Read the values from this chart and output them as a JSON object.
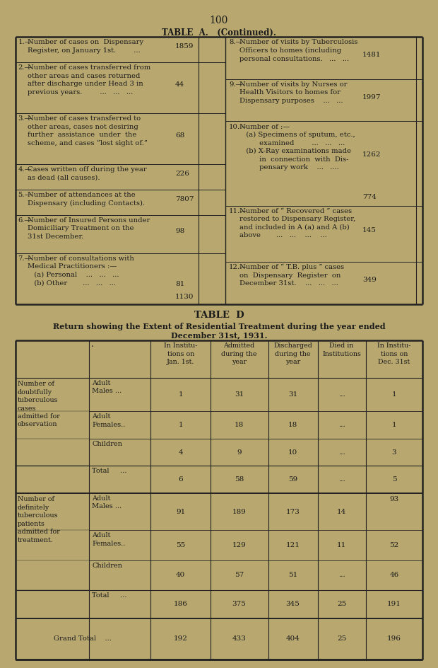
{
  "bg_color": "#b8a870",
  "cell_bg": "#c8b882",
  "text_color": "#1a1a1a",
  "page_number": "100",
  "table_a_title": "TABLE  A.   (Continued).",
  "left_items": [
    {
      "num": "1.",
      "text": "Number of cases on  Dispensary\nRegister, on January 1st.        ...",
      "value": "1859",
      "lines": 2
    },
    {
      "num": "2.",
      "text": "Number of cases transferred from\nother areas and cases returned\nafter discharge under Head 3 in\nprevious years.        ...   ...   ...",
      "value": "44",
      "lines": 4
    },
    {
      "num": "3.",
      "text": "Number of cases transferred to\nother areas, cases not desiring\nfurther  assistance  under  the\nscheme, and cases “lost sight of.”",
      "value": "68",
      "lines": 4
    },
    {
      "num": "4.",
      "text": "Cases written off during the year\nas dead (all causes).",
      "value": "226",
      "lines": 2
    },
    {
      "num": "5.",
      "text": "Number of attendances at the\nDispensary (including Contacts).",
      "value": "7807",
      "lines": 2
    },
    {
      "num": "6.",
      "text": "Number of Insured Persons under\nDomiciliary Treatment on the\n31st December.",
      "value": "98",
      "lines": 3
    },
    {
      "num": "7.",
      "text": "Number of consultations with\nMedical Practitioners :—\n   (a) Personal    ...   ...   ...\n   (b) Other       ...   ...   ...",
      "value_a": "81",
      "value_b": "1130",
      "lines": 4,
      "two_vals": true
    }
  ],
  "right_items": [
    {
      "num": "8.",
      "text": "Number of visits by Tuberculosis\nOfficers to homes (including\npersonal consultations.   ...   ...",
      "value": "1481",
      "lines": 3
    },
    {
      "num": "9.",
      "text": "Number of visits by Nurses or\nHealth Visitors to homes for\nDispensary purposes    ...   ...",
      "value": "1997",
      "lines": 3
    },
    {
      "num": "10.",
      "text": "Number of :—\n   (a) Specimens of sputum, etc.,\n         examined        ...   ...   ...\n   (b) X-Ray examinations made\n         in  connection  with  Dis-\n         pensary work    ...   ....",
      "value_a": "1262",
      "value_b": "774",
      "lines": 6,
      "two_vals": true
    },
    {
      "num": "11.",
      "text": "Number of “ Recovered ” cases\nrestored to Dispensary Register,\nand included in A (a) and A (b)\nabove       ...   ...    ...    ...",
      "value": "145",
      "lines": 4
    },
    {
      "num": "12.",
      "text": "Number of “ T.B. plus ” cases\non  Dispensary  Register  on\nDecember 31st.    ...   ...   ...",
      "value": "349",
      "lines": 3
    }
  ],
  "table_d_title": "TABLE  D",
  "table_d_subtitle1": "Return showing the Extent of Residential Treatment during the year ended",
  "table_d_subtitle2": "December 31st, 1931.",
  "col_headers": [
    "In Institu-\ntions on\nJan. 1st.",
    "Admitted\nduring the\nyear",
    "Discharged\nduring the\nyear",
    "Died in\nInstitutions",
    "In Institu-\ntions on\nDec. 31st"
  ],
  "sec1_main_label": "Number of\ndoubtfully\ntuberculous\ncases\nadmitted for\nobservation",
  "sec1_rows": [
    {
      "sub": "Adult\nMales ...",
      "v": [
        "1",
        "31",
        "31",
        "...",
        "1"
      ]
    },
    {
      "sub": "Adult\nFemales..",
      "v": [
        "1",
        "18",
        "18",
        "...",
        "1"
      ]
    },
    {
      "sub": "Children",
      "v": [
        "4",
        "9",
        "10",
        "...",
        "3"
      ]
    },
    {
      "sub": "Total     ...",
      "v": [
        "6",
        "58",
        "59",
        "...",
        "5"
      ]
    }
  ],
  "sec2_main_label": "Number of\ndefinitely\ntuberculous\npatients\nadmitted for\ntreatment.",
  "sec2_rows": [
    {
      "sub": "Adult\nMales ...",
      "v": [
        "91",
        "189",
        "173",
        "14",
        "93"
      ]
    },
    {
      "sub": "Adult\nFemales..",
      "v": [
        "55",
        "129",
        "121",
        "11",
        "52"
      ]
    },
    {
      "sub": "Children",
      "v": [
        "40",
        "57",
        "51",
        "...",
        "46"
      ]
    },
    {
      "sub": "Total     ...",
      "v": [
        "186",
        "375",
        "345",
        "25",
        "191"
      ]
    }
  ],
  "grand_total": [
    "192",
    "433",
    "404",
    "25",
    "196"
  ]
}
